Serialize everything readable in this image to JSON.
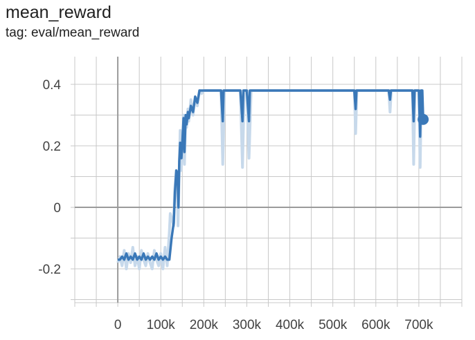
{
  "header": {
    "title": "mean_reward",
    "tag": "tag: eval/mean_reward"
  },
  "colors": {
    "smoothed": "#3a78b8",
    "raw": "#c7d9eb",
    "grid": "#c8c8c8",
    "zero_axis": "#9a9a9a",
    "dot": "#3a78b8"
  },
  "chart_data": {
    "type": "line",
    "title": "mean_reward",
    "subtitle": "tag: eval/mean_reward",
    "xlabel": "",
    "ylabel": "",
    "xlim": [
      -100000,
      800000
    ],
    "ylim": [
      -0.31,
      0.49
    ],
    "x_ticks": [
      0,
      100000,
      200000,
      300000,
      400000,
      500000,
      600000,
      700000
    ],
    "x_tick_labels": [
      "0",
      "100k",
      "200k",
      "300k",
      "400k",
      "500k",
      "600k",
      "700k"
    ],
    "y_ticks": [
      -0.2,
      0,
      0.2,
      0.4
    ],
    "y_tick_labels": [
      "-0.2",
      "0",
      "0.2",
      "0.4"
    ],
    "grid": true,
    "series": [
      {
        "role": "raw",
        "x": [
          0,
          5000,
          10000,
          15000,
          20000,
          25000,
          30000,
          35000,
          40000,
          45000,
          50000,
          55000,
          60000,
          65000,
          70000,
          75000,
          80000,
          85000,
          90000,
          95000,
          100000,
          105000,
          110000,
          115000,
          120000,
          122000,
          126000,
          130000,
          132000,
          136000,
          138000,
          140000,
          145000,
          147000,
          150000,
          153000,
          155000,
          158000,
          160000,
          163000,
          165000,
          170000,
          175000,
          180000,
          185000,
          190000,
          195000,
          200000,
          240000,
          244000,
          248000,
          252000,
          285000,
          290000,
          294000,
          300000,
          305000,
          310000,
          315000,
          320000,
          550000,
          553000,
          556000,
          560000,
          630000,
          633000,
          636000,
          640000,
          685000,
          688000,
          691000,
          695000,
          700000,
          703000,
          706000,
          710000
        ],
        "y": [
          -0.18,
          -0.16,
          -0.19,
          -0.14,
          -0.2,
          -0.15,
          -0.18,
          -0.13,
          -0.19,
          -0.16,
          -0.2,
          -0.14,
          -0.17,
          -0.19,
          -0.15,
          -0.18,
          -0.2,
          -0.14,
          -0.17,
          -0.19,
          -0.15,
          -0.2,
          -0.13,
          -0.19,
          -0.08,
          -0.02,
          -0.04,
          -0.06,
          0.05,
          0.12,
          0.09,
          -0.06,
          0.25,
          0.12,
          0.18,
          0.3,
          0.14,
          0.3,
          0.26,
          0.32,
          0.28,
          0.35,
          0.3,
          0.36,
          0.33,
          0.38,
          0.37,
          0.38,
          0.38,
          0.14,
          0.38,
          0.38,
          0.38,
          0.13,
          0.38,
          0.38,
          0.16,
          0.38,
          0.38,
          0.38,
          0.38,
          0.24,
          0.38,
          0.38,
          0.38,
          0.31,
          0.38,
          0.38,
          0.38,
          0.14,
          0.38,
          0.38,
          0.38,
          0.13,
          0.38,
          0.29
        ]
      },
      {
        "role": "smoothed",
        "x": [
          0,
          5000,
          10000,
          15000,
          20000,
          25000,
          30000,
          35000,
          40000,
          45000,
          50000,
          55000,
          60000,
          65000,
          70000,
          75000,
          80000,
          85000,
          90000,
          95000,
          100000,
          105000,
          110000,
          115000,
          120000,
          125000,
          130000,
          133000,
          136000,
          139000,
          141000,
          143000,
          145000,
          148000,
          150000,
          153000,
          155000,
          158000,
          160000,
          163000,
          165000,
          170000,
          175000,
          180000,
          185000,
          190000,
          195000,
          200000,
          240000,
          244000,
          246000,
          248000,
          252000,
          285000,
          290000,
          292000,
          294000,
          300000,
          305000,
          307000,
          310000,
          315000,
          320000,
          550000,
          553000,
          555000,
          558000,
          630000,
          633000,
          635000,
          638000,
          685000,
          688000,
          690000,
          693000,
          700000,
          703000,
          705000,
          708000,
          710000
        ],
        "y": [
          -0.17,
          -0.17,
          -0.16,
          -0.17,
          -0.15,
          -0.17,
          -0.16,
          -0.17,
          -0.15,
          -0.17,
          -0.16,
          -0.17,
          -0.15,
          -0.17,
          -0.16,
          -0.17,
          -0.16,
          -0.17,
          -0.15,
          -0.17,
          -0.16,
          -0.17,
          -0.16,
          -0.17,
          -0.17,
          -0.1,
          -0.05,
          0.05,
          0.12,
          0.11,
          0.0,
          0.15,
          0.21,
          0.16,
          0.21,
          0.29,
          0.18,
          0.3,
          0.27,
          0.31,
          0.29,
          0.33,
          0.31,
          0.36,
          0.34,
          0.38,
          0.38,
          0.38,
          0.38,
          0.28,
          0.38,
          0.38,
          0.38,
          0.38,
          0.28,
          0.38,
          0.38,
          0.38,
          0.28,
          0.38,
          0.38,
          0.38,
          0.38,
          0.38,
          0.32,
          0.38,
          0.38,
          0.38,
          0.35,
          0.38,
          0.38,
          0.38,
          0.28,
          0.38,
          0.38,
          0.38,
          0.23,
          0.38,
          0.38,
          0.29
        ]
      }
    ],
    "last_point": {
      "x": 710000,
      "y": 0.286
    }
  }
}
